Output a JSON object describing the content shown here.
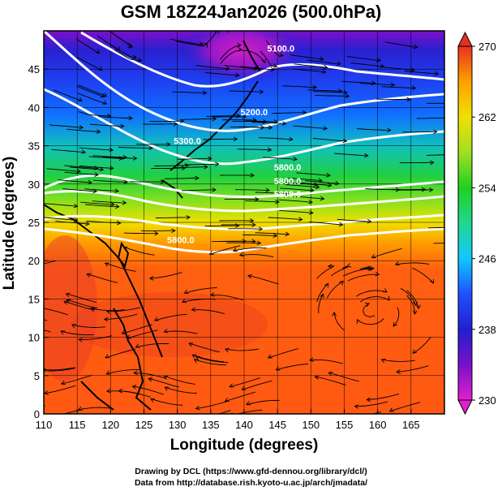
{
  "title": "GSM 18Z24Jan2026 (500.0hPa)",
  "axes": {
    "xlabel": "Longitude (degrees)",
    "ylabel": "Latitude  (degrees)",
    "xticks": [
      "110",
      "115",
      "120",
      "125",
      "130",
      "135",
      "140",
      "145",
      "150",
      "155",
      "160",
      "165"
    ],
    "yticks": [
      "0",
      "5",
      "10",
      "15",
      "20",
      "25",
      "30",
      "35",
      "40",
      "45"
    ],
    "xlim": [
      110,
      170
    ],
    "ylim": [
      0,
      50
    ]
  },
  "colorbar": {
    "ticks": [
      "230",
      "238",
      "246",
      "254",
      "262",
      "270"
    ],
    "range": [
      230,
      270
    ],
    "colors": [
      "#e21fcf",
      "#7a10c8",
      "#2020d0",
      "#1f50ff",
      "#10c8ff",
      "#20d890",
      "#20d020",
      "#a0e020",
      "#f0e000",
      "#ffa000",
      "#ff5010",
      "#e83020"
    ]
  },
  "contour_labels": [
    {
      "text": "5100.0",
      "lon": 145.5,
      "lat": 47.3
    },
    {
      "text": "5200.0",
      "lon": 141.5,
      "lat": 39.0
    },
    {
      "text": "5300.0",
      "lon": 131.5,
      "lat": 35.2
    },
    {
      "text": "5800.0",
      "lon": 146.5,
      "lat": 31.8
    },
    {
      "text": "5800.0",
      "lon": 146.5,
      "lat": 30.0
    },
    {
      "text": "5800.0",
      "lon": 146.5,
      "lat": 28.3
    },
    {
      "text": "5800.0",
      "lon": 130.5,
      "lat": 22.3
    }
  ],
  "credits": {
    "line1": "Drawing by DCL (https://www.gfd-dennou.org/library/dcl/)",
    "line2": "Data from http://database.rish.kyoto-u.ac.jp/arch/jmadata/"
  }
}
